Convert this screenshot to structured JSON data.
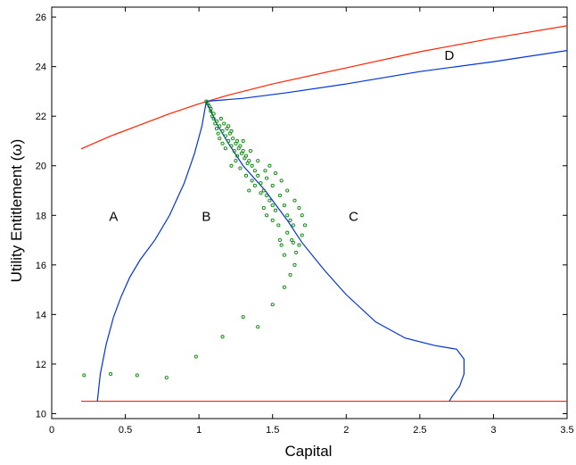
{
  "chart_data": {
    "type": "line",
    "title": "",
    "xlabel": "Capital",
    "ylabel": "Utility Entitlement (ω)",
    "xlim": [
      0,
      3.5
    ],
    "ylim": [
      9.8,
      26.4
    ],
    "xticks": [
      "0",
      "0.5",
      "1",
      "1.5",
      "2",
      "2.5",
      "3",
      "3.5"
    ],
    "xtick_values": [
      0,
      0.5,
      1,
      1.5,
      2,
      2.5,
      3,
      3.5
    ],
    "yticks": [
      "10",
      "12",
      "14",
      "16",
      "18",
      "20",
      "22",
      "24",
      "26"
    ],
    "ytick_values": [
      10,
      12,
      14,
      16,
      18,
      20,
      22,
      24,
      26
    ],
    "grid": false,
    "colors": {
      "upper_frontier": "#ff2200",
      "lower_frontier": "#ff2200",
      "boundary": "#0033dd",
      "scatter": "#008800"
    },
    "region_labels": [
      {
        "text": "A",
        "x": 0.42,
        "y": 18.0
      },
      {
        "text": "B",
        "x": 1.05,
        "y": 18.0
      },
      {
        "text": "C",
        "x": 2.05,
        "y": 18.0
      },
      {
        "text": "D",
        "x": 2.7,
        "y": 24.5
      }
    ],
    "lines": [
      {
        "id": "upper_red",
        "color": "#ff2200",
        "points": [
          [
            0.2,
            20.68
          ],
          [
            0.4,
            21.2
          ],
          [
            0.6,
            21.65
          ],
          [
            0.8,
            22.1
          ],
          [
            1.0,
            22.5
          ],
          [
            1.2,
            22.85
          ],
          [
            1.5,
            23.3
          ],
          [
            2.0,
            23.95
          ],
          [
            2.5,
            24.6
          ],
          [
            3.0,
            25.15
          ],
          [
            3.5,
            25.65
          ]
        ]
      },
      {
        "id": "lower_red",
        "color": "#ff2200",
        "points": [
          [
            0.2,
            10.5
          ],
          [
            3.5,
            10.5
          ]
        ]
      },
      {
        "id": "boundary_A_left",
        "color": "#0033dd",
        "points": [
          [
            0.31,
            10.5
          ],
          [
            0.33,
            11.6
          ],
          [
            0.37,
            12.8
          ],
          [
            0.42,
            13.9
          ],
          [
            0.47,
            14.7
          ],
          [
            0.53,
            15.5
          ],
          [
            0.6,
            16.2
          ],
          [
            0.7,
            17.0
          ],
          [
            0.8,
            18.0
          ],
          [
            0.9,
            19.3
          ],
          [
            0.97,
            20.5
          ],
          [
            1.02,
            21.6
          ],
          [
            1.05,
            22.6
          ]
        ]
      },
      {
        "id": "boundary_D",
        "color": "#0033dd",
        "points": [
          [
            1.05,
            22.6
          ],
          [
            1.3,
            22.72
          ],
          [
            1.6,
            22.95
          ],
          [
            2.0,
            23.3
          ],
          [
            2.5,
            23.8
          ],
          [
            3.0,
            24.2
          ],
          [
            3.5,
            24.65
          ]
        ]
      },
      {
        "id": "boundary_BC",
        "color": "#0033dd",
        "points": [
          [
            1.05,
            22.6
          ],
          [
            1.12,
            21.7
          ],
          [
            1.2,
            20.9
          ],
          [
            1.3,
            20.0
          ],
          [
            1.45,
            19.0
          ],
          [
            1.6,
            17.8
          ],
          [
            1.7,
            16.9
          ],
          [
            1.85,
            15.8
          ],
          [
            2.0,
            14.8
          ],
          [
            2.2,
            13.7
          ],
          [
            2.4,
            13.05
          ],
          [
            2.6,
            12.75
          ],
          [
            2.7,
            12.65
          ],
          [
            2.75,
            12.6
          ],
          [
            2.8,
            12.2
          ],
          [
            2.8,
            11.6
          ],
          [
            2.77,
            11.1
          ],
          [
            2.72,
            10.7
          ],
          [
            2.7,
            10.5
          ]
        ]
      }
    ],
    "scatter": {
      "color": "#008800",
      "points": [
        [
          0.22,
          11.55
        ],
        [
          0.4,
          11.6
        ],
        [
          0.58,
          11.55
        ],
        [
          0.78,
          11.45
        ],
        [
          0.98,
          12.3
        ],
        [
          1.16,
          13.1
        ],
        [
          1.3,
          13.9
        ],
        [
          1.4,
          13.5
        ],
        [
          1.5,
          14.4
        ],
        [
          1.58,
          15.1
        ],
        [
          1.05,
          22.6
        ],
        [
          1.06,
          22.5
        ],
        [
          1.07,
          22.4
        ],
        [
          1.08,
          22.2
        ],
        [
          1.09,
          22.0
        ],
        [
          1.1,
          21.9
        ],
        [
          1.11,
          21.7
        ],
        [
          1.12,
          21.5
        ],
        [
          1.13,
          21.3
        ],
        [
          1.14,
          21.1
        ],
        [
          1.08,
          22.3
        ],
        [
          1.1,
          22.1
        ],
        [
          1.12,
          21.8
        ],
        [
          1.14,
          21.6
        ],
        [
          1.16,
          21.4
        ],
        [
          1.18,
          21.2
        ],
        [
          1.2,
          21.0
        ],
        [
          1.22,
          20.8
        ],
        [
          1.24,
          20.6
        ],
        [
          1.26,
          20.4
        ],
        [
          1.15,
          21.9
        ],
        [
          1.17,
          21.7
        ],
        [
          1.19,
          21.5
        ],
        [
          1.21,
          21.3
        ],
        [
          1.23,
          21.1
        ],
        [
          1.25,
          20.9
        ],
        [
          1.27,
          20.7
        ],
        [
          1.29,
          20.5
        ],
        [
          1.31,
          20.3
        ],
        [
          1.33,
          20.1
        ],
        [
          1.2,
          21.6
        ],
        [
          1.22,
          21.4
        ],
        [
          1.26,
          21.0
        ],
        [
          1.28,
          20.8
        ],
        [
          1.3,
          20.6
        ],
        [
          1.32,
          20.4
        ],
        [
          1.34,
          20.2
        ],
        [
          1.36,
          20.0
        ],
        [
          1.38,
          19.8
        ],
        [
          1.4,
          19.6
        ],
        [
          1.3,
          21.0
        ],
        [
          1.35,
          20.6
        ],
        [
          1.4,
          20.2
        ],
        [
          1.45,
          19.8
        ],
        [
          1.42,
          19.3
        ],
        [
          1.44,
          19.0
        ],
        [
          1.46,
          18.8
        ],
        [
          1.48,
          18.6
        ],
        [
          1.5,
          18.4
        ],
        [
          1.52,
          18.2
        ],
        [
          1.36,
          19.4
        ],
        [
          1.38,
          19.2
        ],
        [
          1.42,
          18.9
        ],
        [
          1.46,
          19.5
        ],
        [
          1.5,
          19.2
        ],
        [
          1.55,
          18.8
        ],
        [
          1.58,
          18.4
        ],
        [
          1.6,
          18.0
        ],
        [
          1.62,
          17.8
        ],
        [
          1.64,
          17.6
        ],
        [
          1.48,
          20.0
        ],
        [
          1.52,
          19.7
        ],
        [
          1.56,
          19.4
        ],
        [
          1.6,
          19.0
        ],
        [
          1.65,
          18.6
        ],
        [
          1.68,
          18.3
        ],
        [
          1.7,
          18.0
        ],
        [
          1.72,
          17.6
        ],
        [
          1.7,
          17.2
        ],
        [
          1.68,
          16.8
        ],
        [
          1.64,
          16.9
        ],
        [
          1.66,
          16.5
        ],
        [
          1.65,
          16.0
        ],
        [
          1.62,
          15.6
        ],
        [
          1.58,
          16.4
        ],
        [
          1.55,
          17.0
        ],
        [
          1.54,
          17.6
        ],
        [
          1.5,
          17.8
        ],
        [
          1.46,
          18.0
        ],
        [
          1.44,
          18.3
        ],
        [
          1.34,
          19.0
        ],
        [
          1.32,
          19.6
        ],
        [
          1.28,
          19.9
        ],
        [
          1.25,
          20.2
        ],
        [
          1.22,
          20.0
        ],
        [
          1.18,
          20.7
        ],
        [
          1.16,
          20.9
        ],
        [
          1.6,
          17.3
        ],
        [
          1.63,
          17.0
        ],
        [
          1.56,
          16.8
        ]
      ]
    }
  }
}
